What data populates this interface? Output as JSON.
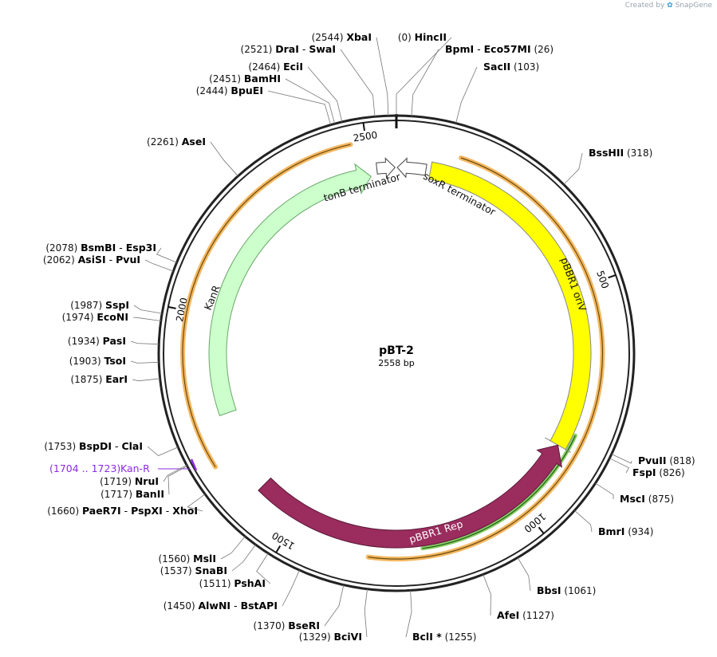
{
  "branding": {
    "created_by": "Created by",
    "logo_text": "SnapGene",
    "logo_icon": "snapgene-leaf-icon"
  },
  "plasmid": {
    "name": "pBT-2",
    "length_label": "2558 bp",
    "length": 2558
  },
  "colors": {
    "backbone": "#222222",
    "orange_strand": "#f4b860",
    "green_strand": "#8ccf6a",
    "orive": "#ffff00",
    "rep": "#9b2c5e",
    "kanr": "#ccffcc",
    "primer": "#8a2be2"
  },
  "ticks": [
    {
      "pos": 500,
      "label": "500"
    },
    {
      "pos": 1000,
      "label": "1000"
    },
    {
      "pos": 1500,
      "label": "1500"
    },
    {
      "pos": 2000,
      "label": "2000"
    },
    {
      "pos": 2500,
      "label": "2500"
    }
  ],
  "features": [
    {
      "id": "soxr-terminator",
      "label": "soxR terminator",
      "kind": "terminator"
    },
    {
      "id": "tonb-terminator",
      "label": "tonB terminator",
      "kind": "terminator"
    },
    {
      "id": "pbbr1-oriv",
      "label": "pBBR1 oriV",
      "kind": "origin"
    },
    {
      "id": "pbbr1-rep",
      "label": "pBBR1 Rep",
      "kind": "cds"
    },
    {
      "id": "kanr",
      "label": "KanR",
      "kind": "cds"
    }
  ],
  "primer": {
    "range": "(1704 .. 1723)",
    "name": "Kan-R"
  },
  "sites": [
    {
      "pos_label": "(0)",
      "names": [
        "HincII"
      ]
    },
    {
      "pos_label": "(26)",
      "names": [
        "BpmI",
        "Eco57MI"
      ]
    },
    {
      "pos_label": "(103)",
      "names": [
        "SacII"
      ]
    },
    {
      "pos_label": "(318)",
      "names": [
        "BssHII"
      ]
    },
    {
      "pos_label": "(818)",
      "names": [
        "PvuII"
      ]
    },
    {
      "pos_label": "(826)",
      "names": [
        "FspI"
      ]
    },
    {
      "pos_label": "(875)",
      "names": [
        "MscI"
      ]
    },
    {
      "pos_label": "(934)",
      "names": [
        "BmrI"
      ]
    },
    {
      "pos_label": "(1061)",
      "names": [
        "BbsI"
      ]
    },
    {
      "pos_label": "(1127)",
      "names": [
        "AfeI"
      ]
    },
    {
      "pos_label": "(1255)",
      "names": [
        "BclI *"
      ]
    },
    {
      "pos_label": "(1329)",
      "names": [
        "BciVI"
      ]
    },
    {
      "pos_label": "(1370)",
      "names": [
        "BseRI"
      ]
    },
    {
      "pos_label": "(1450)",
      "names": [
        "AlwNI",
        "BstAPI"
      ]
    },
    {
      "pos_label": "(1511)",
      "names": [
        "PshAI"
      ]
    },
    {
      "pos_label": "(1537)",
      "names": [
        "SnaBI"
      ]
    },
    {
      "pos_label": "(1560)",
      "names": [
        "MslI"
      ]
    },
    {
      "pos_label": "(1660)",
      "names": [
        "PaeR7I",
        "PspXI",
        "XhoI"
      ]
    },
    {
      "pos_label": "(1717)",
      "names": [
        "BanII"
      ]
    },
    {
      "pos_label": "(1719)",
      "names": [
        "NruI"
      ]
    },
    {
      "pos_label": "(1753)",
      "names": [
        "BspDI",
        "ClaI"
      ]
    },
    {
      "pos_label": "(1875)",
      "names": [
        "EarI"
      ]
    },
    {
      "pos_label": "(1903)",
      "names": [
        "TsoI"
      ]
    },
    {
      "pos_label": "(1934)",
      "names": [
        "PasI"
      ]
    },
    {
      "pos_label": "(1974)",
      "names": [
        "EcoNI"
      ]
    },
    {
      "pos_label": "(1987)",
      "names": [
        "SspI"
      ]
    },
    {
      "pos_label": "(2062)",
      "names": [
        "AsiSI",
        "PvuI"
      ]
    },
    {
      "pos_label": "(2078)",
      "names": [
        "BsmBI",
        "Esp3I"
      ]
    },
    {
      "pos_label": "(2261)",
      "names": [
        "AseI"
      ]
    },
    {
      "pos_label": "(2444)",
      "names": [
        "BpuEI"
      ]
    },
    {
      "pos_label": "(2451)",
      "names": [
        "BamHI"
      ]
    },
    {
      "pos_label": "(2464)",
      "names": [
        "EciI"
      ]
    },
    {
      "pos_label": "(2521)",
      "names": [
        "DraI",
        "SwaI"
      ]
    },
    {
      "pos_label": "(2544)",
      "names": [
        "XbaI"
      ]
    }
  ]
}
